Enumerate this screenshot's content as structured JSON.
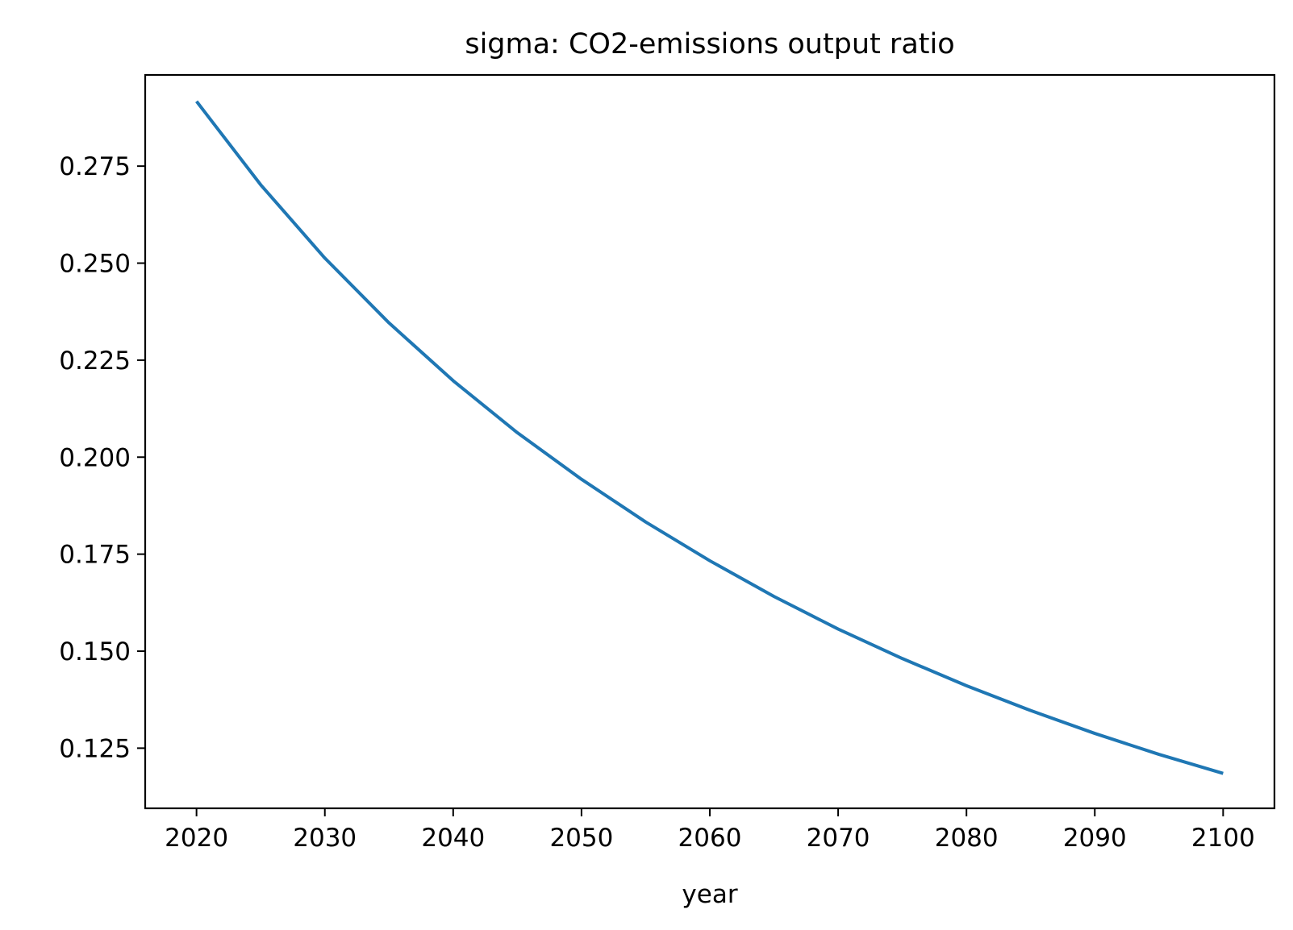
{
  "chart_data": {
    "type": "line",
    "title": "sigma: CO2-emissions output ratio",
    "xlabel": "year",
    "ylabel": "",
    "xlim": [
      2016,
      2104
    ],
    "ylim": [
      0.1095,
      0.2985
    ],
    "x_ticks": [
      2020,
      2030,
      2040,
      2050,
      2060,
      2070,
      2080,
      2090,
      2100
    ],
    "y_ticks": [
      0.125,
      0.15,
      0.175,
      0.2,
      0.225,
      0.25,
      0.275
    ],
    "y_tick_labels": [
      "0.125",
      "0.150",
      "0.175",
      "0.200",
      "0.225",
      "0.250",
      "0.275"
    ],
    "grid": false,
    "legend": "none",
    "series": [
      {
        "color": "#1f77b4",
        "x": [
          2020,
          2025,
          2030,
          2035,
          2040,
          2045,
          2050,
          2055,
          2060,
          2065,
          2070,
          2075,
          2080,
          2085,
          2090,
          2095,
          2100
        ],
        "y": [
          0.2917,
          0.2702,
          0.2513,
          0.2346,
          0.2197,
          0.2063,
          0.1943,
          0.1833,
          0.1733,
          0.1641,
          0.1557,
          0.1481,
          0.1411,
          0.1347,
          0.1288,
          0.1234,
          0.1185
        ]
      }
    ]
  }
}
